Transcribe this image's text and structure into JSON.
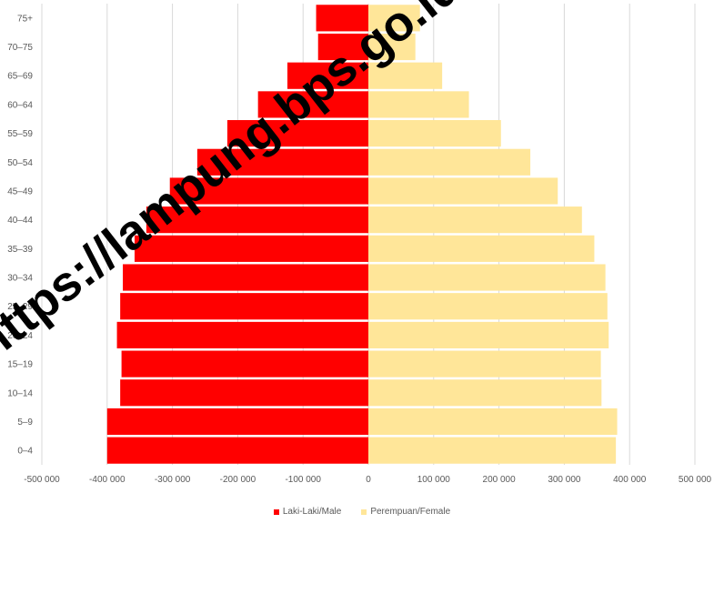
{
  "chart_data": {
    "type": "bar",
    "orientation": "horizontal",
    "categories": [
      "0–4",
      "5–9",
      "10–14",
      "15–19",
      "20–24",
      "25–29",
      "30–34",
      "35–39",
      "40–44",
      "45–49",
      "50–54",
      "55–59",
      "60–64",
      "65–69",
      "70–75",
      "75+"
    ],
    "series": [
      {
        "name": "Laki-Laki/Male",
        "color": "#ff0000",
        "values": [
          -400000,
          -400000,
          -380000,
          -378000,
          -385000,
          -380000,
          -376000,
          -358000,
          -340000,
          -304000,
          -262000,
          -216000,
          -169000,
          -124000,
          -77000,
          -80000
        ]
      },
      {
        "name": "Perempuan/Female",
        "color": "#ffe699",
        "values": [
          379000,
          381000,
          357000,
          356000,
          368000,
          366000,
          363000,
          346000,
          327000,
          290000,
          248000,
          203000,
          154000,
          113000,
          72000,
          79000
        ]
      }
    ],
    "xlim": [
      -500000,
      500000
    ],
    "x_ticks": [
      -500000,
      -400000,
      -300000,
      -200000,
      -100000,
      0,
      100000,
      200000,
      300000,
      400000,
      500000
    ],
    "x_tick_labels": [
      "-500 000",
      "-400 000",
      "-300 000",
      "-200 000",
      "-100 000",
      "0",
      "100 000",
      "200 000",
      "300 000",
      "400 000",
      "500 000"
    ],
    "grid": true,
    "legend": "bottom"
  },
  "watermark": "https://lampung.bps.go.id"
}
